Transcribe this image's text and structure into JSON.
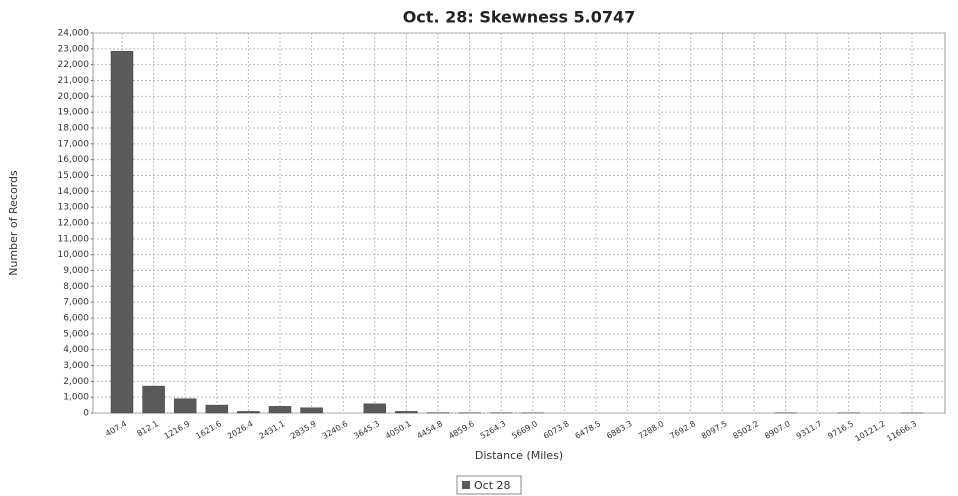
{
  "chart_data": {
    "type": "bar",
    "title": "Oct. 28: Skewness 5.0747",
    "x_label": "Distance (Miles)",
    "y_label": "Number of Records",
    "categories": [
      "407.4",
      "812.1",
      "1216.9",
      "1621.6",
      "2026.4",
      "2431.1",
      "2835.9",
      "3240.6",
      "3645.3",
      "4050.1",
      "4454.8",
      "4859.6",
      "5264.3",
      "5669.0",
      "6073.8",
      "6478.5",
      "6883.3",
      "7288.0",
      "7692.8",
      "8097.5",
      "8502.2",
      "8907.0",
      "9311.7",
      "9716.5",
      "10121.2",
      "11666.3"
    ],
    "series": [
      {
        "name": "Oct 28",
        "color": "#5a5a5a",
        "values": [
          22850,
          1700,
          900,
          500,
          100,
          420,
          330,
          0,
          580,
          100,
          20,
          10,
          10,
          5,
          0,
          0,
          0,
          0,
          0,
          0,
          0,
          10,
          0,
          5,
          0,
          5
        ]
      }
    ],
    "ylim": [
      0,
      24000
    ],
    "yticks": [
      0,
      {
        "value": 1000,
        "label": "1,000"
      },
      {
        "value": 2000,
        "label": "2,000"
      },
      {
        "value": 3000,
        "label": "3,000"
      },
      {
        "value": 4000,
        "label": "4,000"
      },
      {
        "value": 5000,
        "label": "5,000"
      },
      {
        "value": 6000,
        "label": "6,000"
      },
      {
        "value": 7000,
        "label": "7,000"
      },
      {
        "value": 8000,
        "label": "8,000"
      },
      {
        "value": 9000,
        "label": "9,000"
      },
      {
        "value": 10000,
        "label": "10,000"
      },
      {
        "value": 11000,
        "label": "11,000"
      },
      {
        "value": 12000,
        "label": "12,000"
      },
      {
        "value": 13000,
        "label": "13,000"
      },
      {
        "value": 14000,
        "label": "14,000"
      },
      {
        "value": 15000,
        "label": "15,000"
      },
      {
        "value": 16000,
        "label": "16,000"
      },
      {
        "value": 17000,
        "label": "17,000"
      },
      {
        "value": 18000,
        "label": "18,000"
      },
      {
        "value": 19000,
        "label": "19,000"
      },
      {
        "value": 20000,
        "label": "20,000"
      },
      {
        "value": 21000,
        "label": "21,000"
      },
      {
        "value": 22000,
        "label": "22,000"
      },
      {
        "value": 23000,
        "label": "23,000"
      },
      {
        "value": 24000,
        "label": "24,000"
      }
    ],
    "grid": true,
    "legend": "bottom"
  }
}
